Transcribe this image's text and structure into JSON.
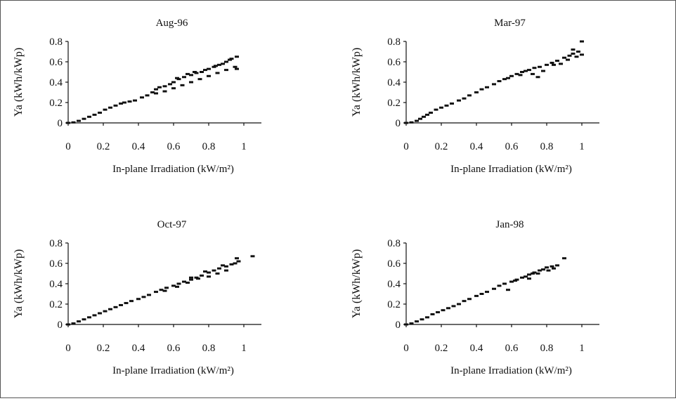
{
  "chart_data": [
    {
      "type": "scatter",
      "title": "Aug-96",
      "xlabel": "In-plane Irradiation (kW/m²)",
      "ylabel": "Ya (kWh/kWp)",
      "xlim": [
        0,
        1.1
      ],
      "ylim": [
        0,
        0.8
      ],
      "xticks": [
        "0",
        "0.2",
        "0.4",
        "0.6",
        "0.8",
        "1"
      ],
      "yticks": [
        "0",
        "0.2",
        "0.4",
        "0.6",
        "0.8"
      ],
      "series": [
        {
          "points": [
            [
              0.0,
              0.0
            ],
            [
              0.03,
              0.005
            ],
            [
              0.06,
              0.02
            ],
            [
              0.09,
              0.04
            ],
            [
              0.12,
              0.06
            ],
            [
              0.15,
              0.08
            ],
            [
              0.18,
              0.1
            ],
            [
              0.21,
              0.13
            ],
            [
              0.24,
              0.15
            ],
            [
              0.27,
              0.17
            ],
            [
              0.3,
              0.19
            ],
            [
              0.32,
              0.2
            ],
            [
              0.35,
              0.21
            ],
            [
              0.38,
              0.22
            ],
            [
              0.42,
              0.25
            ],
            [
              0.45,
              0.27
            ],
            [
              0.48,
              0.3
            ],
            [
              0.5,
              0.33
            ],
            [
              0.52,
              0.35
            ],
            [
              0.55,
              0.36
            ],
            [
              0.58,
              0.38
            ],
            [
              0.6,
              0.4
            ],
            [
              0.63,
              0.43
            ],
            [
              0.66,
              0.45
            ],
            [
              0.7,
              0.47
            ],
            [
              0.73,
              0.49
            ],
            [
              0.76,
              0.5
            ],
            [
              0.8,
              0.53
            ],
            [
              0.83,
              0.55
            ],
            [
              0.86,
              0.57
            ],
            [
              0.9,
              0.6
            ],
            [
              0.93,
              0.63
            ],
            [
              0.96,
              0.65
            ],
            [
              0.5,
              0.29
            ],
            [
              0.55,
              0.31
            ],
            [
              0.6,
              0.34
            ],
            [
              0.65,
              0.37
            ],
            [
              0.7,
              0.4
            ],
            [
              0.75,
              0.43
            ],
            [
              0.8,
              0.46
            ],
            [
              0.85,
              0.49
            ],
            [
              0.9,
              0.52
            ],
            [
              0.95,
              0.55
            ],
            [
              0.96,
              0.53
            ],
            [
              0.62,
              0.44
            ],
            [
              0.68,
              0.48
            ],
            [
              0.72,
              0.5
            ],
            [
              0.78,
              0.52
            ],
            [
              0.84,
              0.56
            ],
            [
              0.88,
              0.58
            ],
            [
              0.92,
              0.62
            ]
          ]
        }
      ]
    },
    {
      "type": "scatter",
      "title": "Mar-97",
      "xlabel": "In-plane Irradiation (kW/m²)",
      "ylabel": "Ya (kWh/kWp)",
      "xlim": [
        0,
        1.1
      ],
      "ylim": [
        0,
        0.8
      ],
      "xticks": [
        "0",
        "0.2",
        "0.4",
        "0.6",
        "0.8",
        "1"
      ],
      "yticks": [
        "0",
        "0.2",
        "0.4",
        "0.6",
        "0.8"
      ],
      "series": [
        {
          "points": [
            [
              0.0,
              0.0
            ],
            [
              0.03,
              0.005
            ],
            [
              0.06,
              0.02
            ],
            [
              0.08,
              0.04
            ],
            [
              0.1,
              0.06
            ],
            [
              0.12,
              0.08
            ],
            [
              0.14,
              0.1
            ],
            [
              0.17,
              0.13
            ],
            [
              0.2,
              0.15
            ],
            [
              0.23,
              0.17
            ],
            [
              0.26,
              0.19
            ],
            [
              0.3,
              0.22
            ],
            [
              0.33,
              0.24
            ],
            [
              0.36,
              0.27
            ],
            [
              0.4,
              0.3
            ],
            [
              0.43,
              0.33
            ],
            [
              0.46,
              0.35
            ],
            [
              0.5,
              0.38
            ],
            [
              0.53,
              0.41
            ],
            [
              0.56,
              0.43
            ],
            [
              0.6,
              0.46
            ],
            [
              0.63,
              0.48
            ],
            [
              0.66,
              0.5
            ],
            [
              0.7,
              0.52
            ],
            [
              0.73,
              0.54
            ],
            [
              0.76,
              0.55
            ],
            [
              0.8,
              0.57
            ],
            [
              0.83,
              0.59
            ],
            [
              0.86,
              0.61
            ],
            [
              0.9,
              0.64
            ],
            [
              0.93,
              0.66
            ],
            [
              0.95,
              0.68
            ],
            [
              0.98,
              0.7
            ],
            [
              1.0,
              0.8
            ],
            [
              0.95,
              0.72
            ],
            [
              0.97,
              0.65
            ],
            [
              1.0,
              0.67
            ],
            [
              0.92,
              0.62
            ],
            [
              0.88,
              0.58
            ],
            [
              0.84,
              0.57
            ],
            [
              0.78,
              0.51
            ],
            [
              0.72,
              0.48
            ],
            [
              0.65,
              0.47
            ],
            [
              0.58,
              0.44
            ],
            [
              0.75,
              0.45
            ],
            [
              0.68,
              0.51
            ]
          ]
        }
      ]
    },
    {
      "type": "scatter",
      "title": "Oct-97",
      "xlabel": "In-plane Irradiation (kW/m²)",
      "ylabel": "Ya (kWh/kWp)",
      "xlim": [
        0,
        1.1
      ],
      "ylim": [
        0,
        0.8
      ],
      "xticks": [
        "0",
        "0.2",
        "0.4",
        "0.6",
        "0.8",
        "1"
      ],
      "yticks": [
        "0",
        "0.2",
        "0.4",
        "0.6",
        "0.8"
      ],
      "series": [
        {
          "points": [
            [
              0.0,
              0.0
            ],
            [
              0.03,
              0.01
            ],
            [
              0.06,
              0.03
            ],
            [
              0.09,
              0.05
            ],
            [
              0.12,
              0.07
            ],
            [
              0.15,
              0.09
            ],
            [
              0.18,
              0.11
            ],
            [
              0.21,
              0.13
            ],
            [
              0.24,
              0.15
            ],
            [
              0.27,
              0.17
            ],
            [
              0.3,
              0.19
            ],
            [
              0.33,
              0.21
            ],
            [
              0.36,
              0.23
            ],
            [
              0.4,
              0.25
            ],
            [
              0.43,
              0.27
            ],
            [
              0.46,
              0.29
            ],
            [
              0.5,
              0.32
            ],
            [
              0.53,
              0.34
            ],
            [
              0.56,
              0.36
            ],
            [
              0.6,
              0.38
            ],
            [
              0.63,
              0.4
            ],
            [
              0.66,
              0.42
            ],
            [
              0.7,
              0.44
            ],
            [
              0.73,
              0.46
            ],
            [
              0.76,
              0.48
            ],
            [
              0.8,
              0.51
            ],
            [
              0.83,
              0.53
            ],
            [
              0.86,
              0.55
            ],
            [
              0.9,
              0.57
            ],
            [
              0.93,
              0.59
            ],
            [
              0.95,
              0.6
            ],
            [
              0.97,
              0.62
            ],
            [
              1.05,
              0.67
            ],
            [
              0.96,
              0.65
            ],
            [
              0.55,
              0.33
            ],
            [
              0.62,
              0.37
            ],
            [
              0.68,
              0.41
            ],
            [
              0.74,
              0.45
            ],
            [
              0.8,
              0.47
            ],
            [
              0.85,
              0.5
            ],
            [
              0.9,
              0.53
            ],
            [
              0.7,
              0.46
            ],
            [
              0.78,
              0.52
            ],
            [
              0.88,
              0.58
            ]
          ]
        }
      ]
    },
    {
      "type": "scatter",
      "title": "Jan-98",
      "xlabel": "In-plane Irradiation (kW/m²)",
      "ylabel": "Ya (kWh/kWp)",
      "xlim": [
        0,
        1.1
      ],
      "ylim": [
        0,
        0.8
      ],
      "xticks": [
        "0",
        "0.2",
        "0.4",
        "0.6",
        "0.8",
        "1"
      ],
      "yticks": [
        "0",
        "0.2",
        "0.4",
        "0.6",
        "0.8"
      ],
      "series": [
        {
          "points": [
            [
              0.0,
              0.0
            ],
            [
              0.03,
              0.01
            ],
            [
              0.06,
              0.03
            ],
            [
              0.09,
              0.05
            ],
            [
              0.12,
              0.07
            ],
            [
              0.15,
              0.1
            ],
            [
              0.18,
              0.12
            ],
            [
              0.21,
              0.14
            ],
            [
              0.24,
              0.16
            ],
            [
              0.27,
              0.18
            ],
            [
              0.3,
              0.2
            ],
            [
              0.33,
              0.23
            ],
            [
              0.36,
              0.25
            ],
            [
              0.4,
              0.28
            ],
            [
              0.43,
              0.3
            ],
            [
              0.46,
              0.32
            ],
            [
              0.5,
              0.35
            ],
            [
              0.53,
              0.38
            ],
            [
              0.56,
              0.4
            ],
            [
              0.6,
              0.42
            ],
            [
              0.63,
              0.44
            ],
            [
              0.66,
              0.46
            ],
            [
              0.7,
              0.49
            ],
            [
              0.73,
              0.51
            ],
            [
              0.76,
              0.53
            ],
            [
              0.8,
              0.56
            ],
            [
              0.83,
              0.57
            ],
            [
              0.86,
              0.58
            ],
            [
              0.9,
              0.65
            ],
            [
              0.84,
              0.55
            ],
            [
              0.78,
              0.54
            ],
            [
              0.72,
              0.5
            ],
            [
              0.68,
              0.47
            ],
            [
              0.58,
              0.34
            ],
            [
              0.62,
              0.43
            ],
            [
              0.7,
              0.45
            ],
            [
              0.75,
              0.5
            ],
            [
              0.81,
              0.53
            ]
          ]
        }
      ]
    }
  ]
}
